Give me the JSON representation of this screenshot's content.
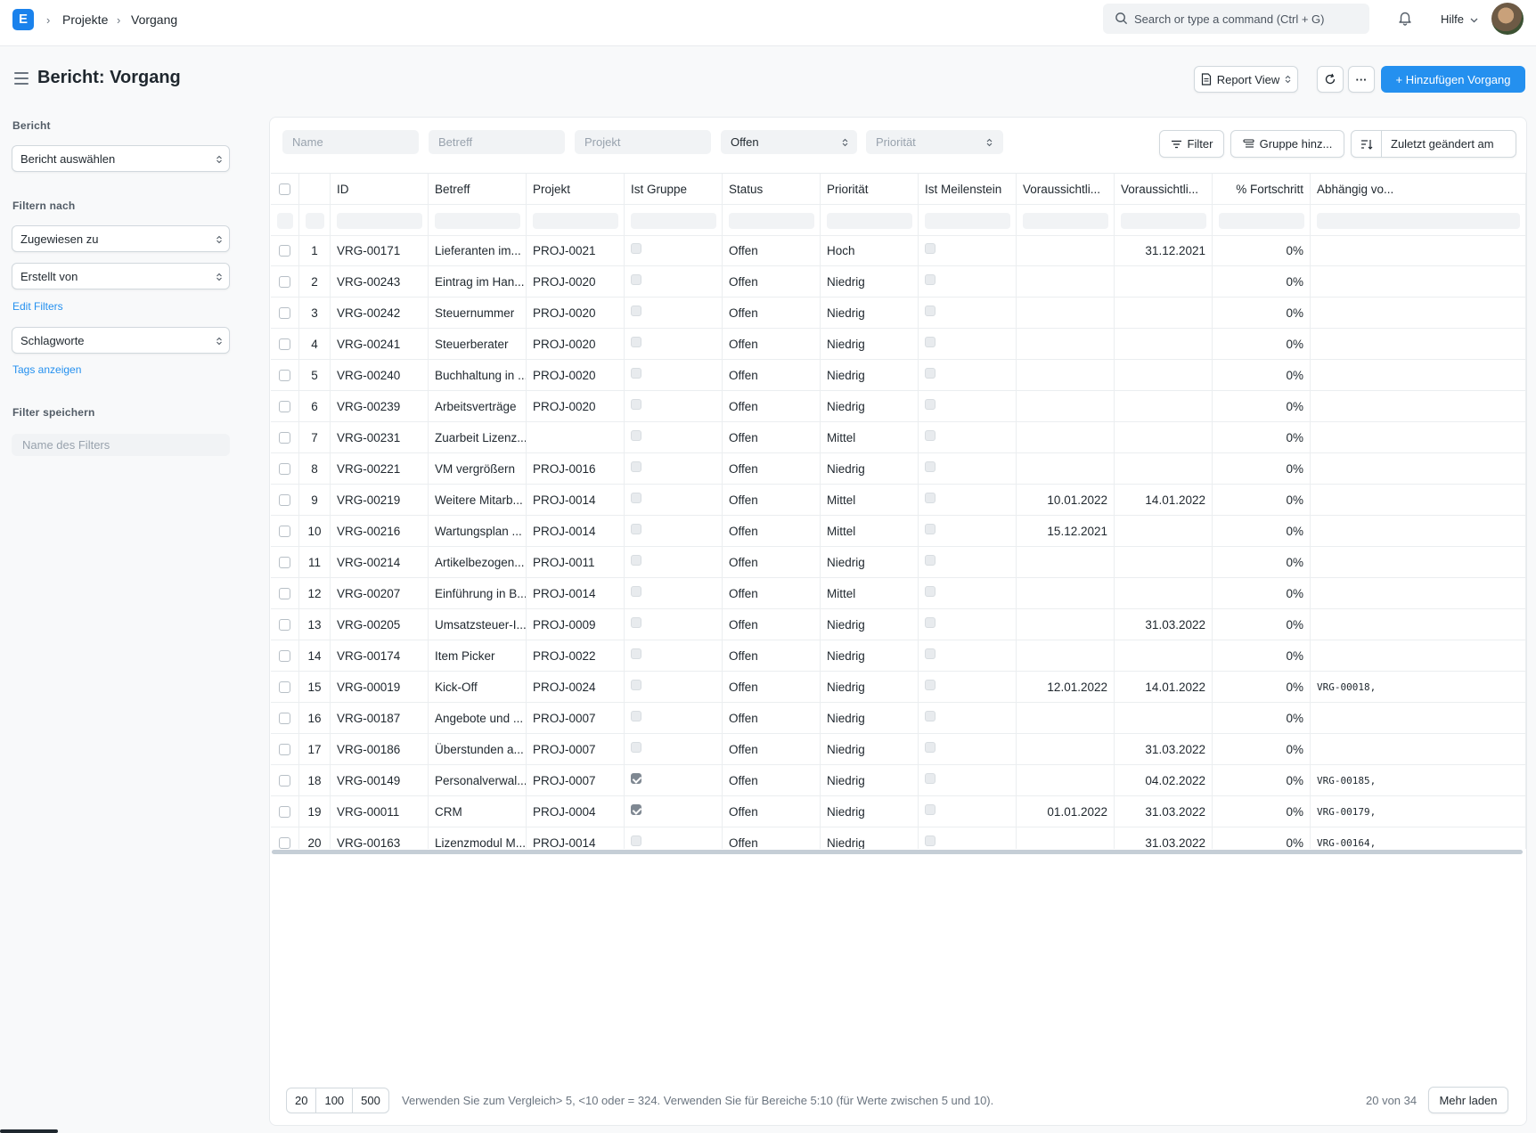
{
  "navbar": {
    "logo_letter": "E",
    "breadcrumbs": [
      "Projekte",
      "Vorgang"
    ],
    "search_placeholder": "Search or type a command (Ctrl + G)",
    "help_label": "Hilfe"
  },
  "page": {
    "title": "Bericht: Vorgang",
    "view_switch_label": "Report View",
    "more_label": "···",
    "add_button_label": "+ Hinzufügen Vorgang"
  },
  "sidebar": {
    "report_label": "Bericht",
    "report_select": "Bericht auswählen",
    "filter_by_label": "Filtern nach",
    "assigned_to": "Zugewiesen zu",
    "created_by": "Erstellt von",
    "edit_filters": "Edit Filters",
    "tags": "Schlagworte",
    "show_tags": "Tags anzeigen",
    "save_filter_label": "Filter speichern",
    "filter_name_placeholder": "Name des Filters"
  },
  "filters": {
    "name_placeholder": "Name",
    "subject_placeholder": "Betreff",
    "project_placeholder": "Projekt",
    "status_value": "Offen",
    "priority_placeholder": "Priorität",
    "filter_button": "Filter",
    "group_button": "Gruppe hinz...",
    "sort_label": "Zuletzt geändert am"
  },
  "table": {
    "columns": [
      "ID",
      "Betreff",
      "Projekt",
      "Ist Gruppe",
      "Status",
      "Priorität",
      "Ist Meilenstein",
      "Voraussichtli...",
      "Voraussichtli...",
      "% Fortschritt",
      "Abhängig vo..."
    ],
    "rows": [
      {
        "n": "1",
        "id": "VRG-00171",
        "subject": "Lieferanten im...",
        "project": "PROJ-0021",
        "group": false,
        "status": "Offen",
        "priority": "Hoch",
        "start": "",
        "end": "31.12.2021",
        "progress": "0%",
        "depends": ""
      },
      {
        "n": "2",
        "id": "VRG-00243",
        "subject": "Eintrag im Han...",
        "project": "PROJ-0020",
        "group": false,
        "status": "Offen",
        "priority": "Niedrig",
        "start": "",
        "end": "",
        "progress": "0%",
        "depends": ""
      },
      {
        "n": "3",
        "id": "VRG-00242",
        "subject": "Steuernummer",
        "project": "PROJ-0020",
        "group": false,
        "status": "Offen",
        "priority": "Niedrig",
        "start": "",
        "end": "",
        "progress": "0%",
        "depends": ""
      },
      {
        "n": "4",
        "id": "VRG-00241",
        "subject": "Steuerberater",
        "project": "PROJ-0020",
        "group": false,
        "status": "Offen",
        "priority": "Niedrig",
        "start": "",
        "end": "",
        "progress": "0%",
        "depends": ""
      },
      {
        "n": "5",
        "id": "VRG-00240",
        "subject": "Buchhaltung in ...",
        "project": "PROJ-0020",
        "group": false,
        "status": "Offen",
        "priority": "Niedrig",
        "start": "",
        "end": "",
        "progress": "0%",
        "depends": ""
      },
      {
        "n": "6",
        "id": "VRG-00239",
        "subject": "Arbeitsverträge",
        "project": "PROJ-0020",
        "group": false,
        "status": "Offen",
        "priority": "Niedrig",
        "start": "",
        "end": "",
        "progress": "0%",
        "depends": ""
      },
      {
        "n": "7",
        "id": "VRG-00231",
        "subject": "Zuarbeit Lizenz...",
        "project": "",
        "group": false,
        "status": "Offen",
        "priority": "Mittel",
        "start": "",
        "end": "",
        "progress": "0%",
        "depends": ""
      },
      {
        "n": "8",
        "id": "VRG-00221",
        "subject": "VM vergrößern",
        "project": "PROJ-0016",
        "group": false,
        "status": "Offen",
        "priority": "Niedrig",
        "start": "",
        "end": "",
        "progress": "0%",
        "depends": ""
      },
      {
        "n": "9",
        "id": "VRG-00219",
        "subject": "Weitere Mitarb...",
        "project": "PROJ-0014",
        "group": false,
        "status": "Offen",
        "priority": "Mittel",
        "start": "10.01.2022",
        "end": "14.01.2022",
        "progress": "0%",
        "depends": ""
      },
      {
        "n": "10",
        "id": "VRG-00216",
        "subject": "Wartungsplan ...",
        "project": "PROJ-0014",
        "group": false,
        "status": "Offen",
        "priority": "Mittel",
        "start": "15.12.2021",
        "end": "",
        "progress": "0%",
        "depends": ""
      },
      {
        "n": "11",
        "id": "VRG-00214",
        "subject": "Artikelbezogen...",
        "project": "PROJ-0011",
        "group": false,
        "status": "Offen",
        "priority": "Niedrig",
        "start": "",
        "end": "",
        "progress": "0%",
        "depends": ""
      },
      {
        "n": "12",
        "id": "VRG-00207",
        "subject": "Einführung in B...",
        "project": "PROJ-0014",
        "group": false,
        "status": "Offen",
        "priority": "Mittel",
        "start": "",
        "end": "",
        "progress": "0%",
        "depends": ""
      },
      {
        "n": "13",
        "id": "VRG-00205",
        "subject": "Umsatzsteuer-I...",
        "project": "PROJ-0009",
        "group": false,
        "status": "Offen",
        "priority": "Niedrig",
        "start": "",
        "end": "31.03.2022",
        "progress": "0%",
        "depends": ""
      },
      {
        "n": "14",
        "id": "VRG-00174",
        "subject": "Item Picker",
        "project": "PROJ-0022",
        "group": false,
        "status": "Offen",
        "priority": "Niedrig",
        "start": "",
        "end": "",
        "progress": "0%",
        "depends": ""
      },
      {
        "n": "15",
        "id": "VRG-00019",
        "subject": "Kick-Off",
        "project": "PROJ-0024",
        "group": false,
        "status": "Offen",
        "priority": "Niedrig",
        "start": "12.01.2022",
        "end": "14.01.2022",
        "progress": "0%",
        "depends": "VRG-00018,"
      },
      {
        "n": "16",
        "id": "VRG-00187",
        "subject": "Angebote und ...",
        "project": "PROJ-0007",
        "group": false,
        "status": "Offen",
        "priority": "Niedrig",
        "start": "",
        "end": "",
        "progress": "0%",
        "depends": ""
      },
      {
        "n": "17",
        "id": "VRG-00186",
        "subject": "Überstunden a...",
        "project": "PROJ-0007",
        "group": false,
        "status": "Offen",
        "priority": "Niedrig",
        "start": "",
        "end": "31.03.2022",
        "progress": "0%",
        "depends": ""
      },
      {
        "n": "18",
        "id": "VRG-00149",
        "subject": "Personalverwal...",
        "project": "PROJ-0007",
        "group": true,
        "status": "Offen",
        "priority": "Niedrig",
        "start": "",
        "end": "04.02.2022",
        "progress": "0%",
        "depends": "VRG-00185,"
      },
      {
        "n": "19",
        "id": "VRG-00011",
        "subject": "CRM",
        "project": "PROJ-0004",
        "group": true,
        "status": "Offen",
        "priority": "Niedrig",
        "start": "01.01.2022",
        "end": "31.03.2022",
        "progress": "0%",
        "depends": "VRG-00179,"
      },
      {
        "n": "20",
        "id": "VRG-00163",
        "subject": "Lizenzmodul M...",
        "project": "PROJ-0014",
        "group": false,
        "status": "Offen",
        "priority": "Niedrig",
        "start": "",
        "end": "31.03.2022",
        "progress": "0%",
        "depends": "VRG-00164,"
      }
    ]
  },
  "footer": {
    "page_sizes": [
      "20",
      "100",
      "500"
    ],
    "hint": "Verwenden Sie zum Vergleich> 5, <10 oder = 324. Verwenden Sie für Bereiche 5:10 (für Werte zwischen 5 und 10).",
    "count": "20 von 34",
    "load_more": "Mehr laden"
  },
  "colors": {
    "accent": "#2490ef",
    "logo": "#1a82ec"
  }
}
